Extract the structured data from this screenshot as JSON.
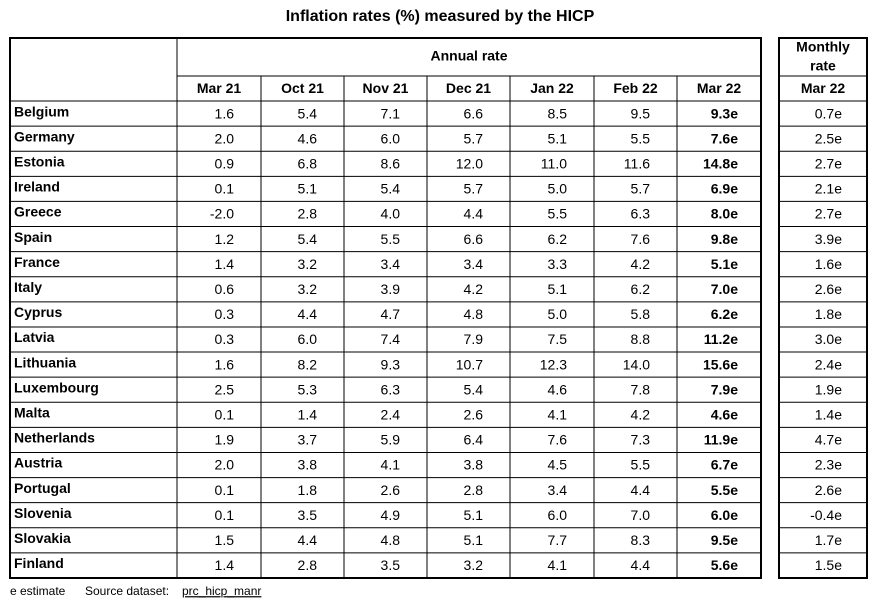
{
  "title": "Inflation rates (%) measured by the HICP",
  "table": {
    "group_header": "Annual rate",
    "columns": [
      "Mar 21",
      "Oct 21",
      "Nov 21",
      "Dec 21",
      "Jan 22",
      "Feb 22",
      "Mar 22"
    ],
    "rows": [
      {
        "country": "Belgium",
        "values": [
          "1.6",
          "5.4",
          "7.1",
          "6.6",
          "8.5",
          "9.5",
          "9.3e"
        ]
      },
      {
        "country": "Germany",
        "values": [
          "2.0",
          "4.6",
          "6.0",
          "5.7",
          "5.1",
          "5.5",
          "7.6e"
        ]
      },
      {
        "country": "Estonia",
        "values": [
          "0.9",
          "6.8",
          "8.6",
          "12.0",
          "11.0",
          "11.6",
          "14.8e"
        ]
      },
      {
        "country": "Ireland",
        "values": [
          "0.1",
          "5.1",
          "5.4",
          "5.7",
          "5.0",
          "5.7",
          "6.9e"
        ]
      },
      {
        "country": "Greece",
        "values": [
          "-2.0",
          "2.8",
          "4.0",
          "4.4",
          "5.5",
          "6.3",
          "8.0e"
        ]
      },
      {
        "country": "Spain",
        "values": [
          "1.2",
          "5.4",
          "5.5",
          "6.6",
          "6.2",
          "7.6",
          "9.8e"
        ]
      },
      {
        "country": "France",
        "values": [
          "1.4",
          "3.2",
          "3.4",
          "3.4",
          "3.3",
          "4.2",
          "5.1e"
        ]
      },
      {
        "country": "Italy",
        "values": [
          "0.6",
          "3.2",
          "3.9",
          "4.2",
          "5.1",
          "6.2",
          "7.0e"
        ]
      },
      {
        "country": "Cyprus",
        "values": [
          "0.3",
          "4.4",
          "4.7",
          "4.8",
          "5.0",
          "5.8",
          "6.2e"
        ]
      },
      {
        "country": "Latvia",
        "values": [
          "0.3",
          "6.0",
          "7.4",
          "7.9",
          "7.5",
          "8.8",
          "11.2e"
        ]
      },
      {
        "country": "Lithuania",
        "values": [
          "1.6",
          "8.2",
          "9.3",
          "10.7",
          "12.3",
          "14.0",
          "15.6e"
        ]
      },
      {
        "country": "Luxembourg",
        "values": [
          "2.5",
          "5.3",
          "6.3",
          "5.4",
          "4.6",
          "7.8",
          "7.9e"
        ]
      },
      {
        "country": "Malta",
        "values": [
          "0.1",
          "1.4",
          "2.4",
          "2.6",
          "4.1",
          "4.2",
          "4.6e"
        ]
      },
      {
        "country": "Netherlands",
        "values": [
          "1.9",
          "3.7",
          "5.9",
          "6.4",
          "7.6",
          "7.3",
          "11.9e"
        ]
      },
      {
        "country": "Austria",
        "values": [
          "2.0",
          "3.8",
          "4.1",
          "3.8",
          "4.5",
          "5.5",
          "6.7e"
        ]
      },
      {
        "country": "Portugal",
        "values": [
          "0.1",
          "1.8",
          "2.6",
          "2.8",
          "3.4",
          "4.4",
          "5.5e"
        ]
      },
      {
        "country": "Slovenia",
        "values": [
          "0.1",
          "3.5",
          "4.9",
          "5.1",
          "6.0",
          "7.0",
          "6.0e"
        ]
      },
      {
        "country": "Slovakia",
        "values": [
          "1.5",
          "4.4",
          "4.8",
          "5.1",
          "7.7",
          "8.3",
          "9.5e"
        ]
      },
      {
        "country": "Finland",
        "values": [
          "1.4",
          "2.8",
          "3.5",
          "3.2",
          "4.1",
          "4.4",
          "5.6e"
        ]
      }
    ]
  },
  "monthly": {
    "header": [
      "Monthly",
      "rate"
    ],
    "column": "Mar 22",
    "values": [
      "0.7e",
      "2.5e",
      "2.7e",
      "2.1e",
      "2.7e",
      "3.9e",
      "1.6e",
      "2.6e",
      "1.8e",
      "3.0e",
      "2.4e",
      "1.9e",
      "1.4e",
      "4.7e",
      "2.3e",
      "2.6e",
      "-0.4e",
      "1.7e",
      "1.5e"
    ]
  },
  "footer": {
    "note": "e estimate",
    "source_label": "Source dataset:",
    "source_link": "prc_hicp_manr"
  }
}
